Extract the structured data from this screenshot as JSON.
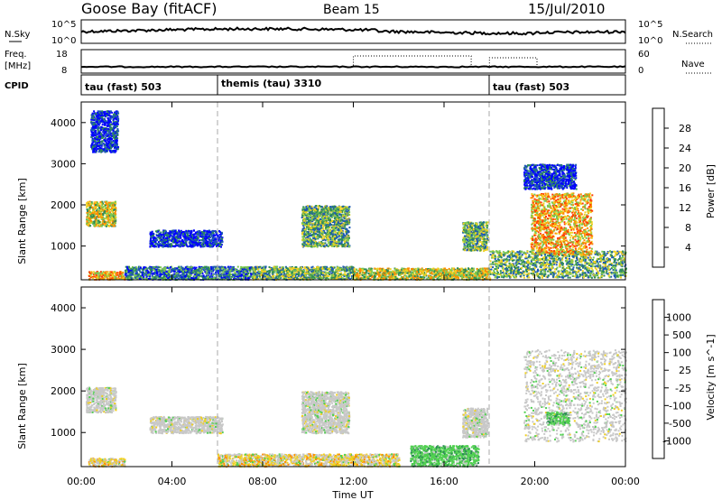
{
  "header": {
    "station": "Goose Bay (fitACF)",
    "beam": "Beam 15",
    "date": "15/Jul/2010"
  },
  "noise_panel": {
    "left_label": "N.Sky",
    "right_label": "N.Search",
    "left_ticks": [
      "10^5",
      "10^0"
    ],
    "right_ticks": [
      "10^5",
      "10^0"
    ]
  },
  "freq_panel": {
    "left_label": "Freq.",
    "left_unit": "[MHz]",
    "right_label": "Nave",
    "left_ticks": [
      "18",
      "8"
    ],
    "right_ticks": [
      "60",
      "0"
    ]
  },
  "cpid_panel": {
    "label": "CPID",
    "segments": [
      {
        "name": "tau (fast) 503",
        "start_h": 0
      },
      {
        "name": "themis (tau) 3310",
        "start_h": 6
      },
      {
        "name": "tau (fast) 503",
        "start_h": 18
      }
    ]
  },
  "chart_data": [
    {
      "type": "heatmap",
      "title": "",
      "ylabel": "Slant Range [km]",
      "xlabel": "",
      "ylim": [
        180,
        4500
      ],
      "yticks": [
        1000,
        2000,
        3000,
        4000
      ],
      "colorbar": {
        "label": "Power [dB]",
        "ticks": [
          4,
          8,
          12,
          16,
          20,
          24,
          28
        ],
        "colors": [
          "#0000ff",
          "#1f5ab4",
          "#2e8b57",
          "#7cc850",
          "#f0d020",
          "#ff8c00",
          "#ff4000",
          "#e00000"
        ]
      },
      "regions": [
        {
          "t0": 0.3,
          "t1": 1.9,
          "r0": 200,
          "r1": 400,
          "level": 5
        },
        {
          "t0": 0.2,
          "t1": 1.5,
          "r0": 1500,
          "r1": 2100,
          "level": 4
        },
        {
          "t0": 0.4,
          "t1": 1.6,
          "r0": 3300,
          "r1": 4300,
          "level": 1
        },
        {
          "t0": 1.9,
          "t1": 7.5,
          "r0": 200,
          "r1": 520,
          "level": 2
        },
        {
          "t0": 3.0,
          "t1": 6.2,
          "r0": 1000,
          "r1": 1400,
          "level": 1
        },
        {
          "t0": 7.5,
          "t1": 12.0,
          "r0": 200,
          "r1": 520,
          "level": 3
        },
        {
          "t0": 9.7,
          "t1": 11.8,
          "r0": 1000,
          "r1": 2000,
          "level": 3
        },
        {
          "t0": 12.0,
          "t1": 18.0,
          "r0": 200,
          "r1": 480,
          "level": 4
        },
        {
          "t0": 16.8,
          "t1": 17.9,
          "r0": 900,
          "r1": 1600,
          "level": 3
        },
        {
          "t0": 18.0,
          "t1": 24.0,
          "r0": 250,
          "r1": 900,
          "level": 3
        },
        {
          "t0": 19.8,
          "t1": 22.5,
          "r0": 800,
          "r1": 2300,
          "level": 5
        },
        {
          "t0": 19.5,
          "t1": 21.8,
          "r0": 2400,
          "r1": 3000,
          "level": 1
        }
      ]
    },
    {
      "type": "heatmap",
      "title": "",
      "ylabel": "Slant Range [km]",
      "xlabel": "Time UT",
      "xticks": [
        "00:00",
        "04:00",
        "08:00",
        "12:00",
        "16:00",
        "20:00",
        "00:00"
      ],
      "ylim": [
        180,
        4500
      ],
      "yticks": [
        1000,
        2000,
        3000,
        4000
      ],
      "colorbar": {
        "label": "Velocity [m s^-1]",
        "ticks": [
          "1000",
          "500",
          "100",
          "25",
          "-25",
          "-100",
          "-500",
          "-1000"
        ],
        "colors": [
          "#1f3ab4",
          "#2e8b57",
          "#6ec850",
          "#50d050",
          "#c8c8c8",
          "#f0d020",
          "#ff8c00",
          "#ff4000",
          "#e00000"
        ]
      },
      "regions": [
        {
          "t0": 0.2,
          "t1": 1.5,
          "r0": 1500,
          "r1": 2100,
          "kind": "ground"
        },
        {
          "t0": 3.0,
          "t1": 6.2,
          "r0": 1000,
          "r1": 1400,
          "kind": "ground"
        },
        {
          "t0": 9.7,
          "t1": 11.8,
          "r0": 1000,
          "r1": 2000,
          "kind": "ground"
        },
        {
          "t0": 16.8,
          "t1": 17.9,
          "r0": 900,
          "r1": 1600,
          "kind": "ground"
        },
        {
          "t0": 19.5,
          "t1": 24.0,
          "r0": 800,
          "r1": 3000,
          "kind": "ground"
        },
        {
          "t0": 0.3,
          "t1": 1.9,
          "r0": 200,
          "r1": 400,
          "kind": "neg"
        },
        {
          "t0": 6.0,
          "t1": 14.0,
          "r0": 200,
          "r1": 500,
          "kind": "neg"
        },
        {
          "t0": 14.5,
          "t1": 17.5,
          "r0": 200,
          "r1": 700,
          "kind": "pos"
        },
        {
          "t0": 20.5,
          "t1": 21.5,
          "r0": 1200,
          "r1": 1500,
          "kind": "pos"
        }
      ]
    }
  ]
}
